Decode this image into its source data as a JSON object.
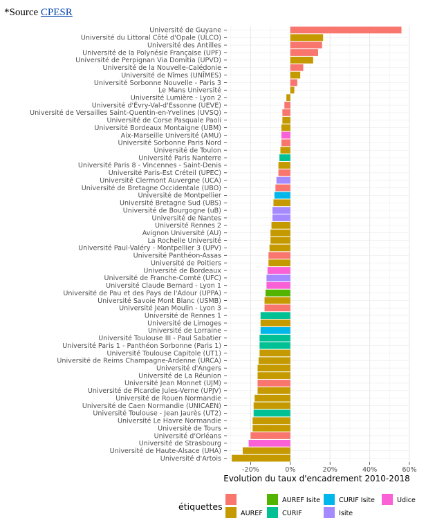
{
  "source": {
    "prefix": "*Source ",
    "link_text": "CPESR"
  },
  "colors": {
    "": "#F8766D",
    "AUREF": "#C49A00",
    "AUREF Isite": "#53B400",
    "CURIF": "#00C094",
    "CURIF Isite": "#00B6EB",
    "Isite": "#A58AFF",
    "Udice": "#FB61D7"
  },
  "chart_data": {
    "type": "bar",
    "orientation": "horizontal",
    "xlabel": "Evolution du taux d'encadrement 2010-2018",
    "ylabel": "",
    "xlim": [
      -0.32,
      0.6
    ],
    "xticks": [
      -0.2,
      0,
      0.2,
      0.4,
      0.6
    ],
    "xtick_labels": [
      "-20%",
      "0%",
      "20%",
      "40%",
      "60%"
    ],
    "grid": true,
    "legend_title": "étiquettes",
    "legend_position": "bottom",
    "legend_entries": [
      "",
      "AUREF",
      "AUREF Isite",
      "CURIF",
      "CURIF Isite",
      "Isite",
      "Udice"
    ],
    "series": [
      {
        "label": "Université de Guyane",
        "value": 0.56,
        "group": ""
      },
      {
        "label": "Université du Littoral Côté d'Opale (ULCO)",
        "value": 0.165,
        "group": "AUREF"
      },
      {
        "label": "Université des Antilles",
        "value": 0.16,
        "group": ""
      },
      {
        "label": "Université de la Polynésie Française (UPF)",
        "value": 0.14,
        "group": ""
      },
      {
        "label": "Université de Perpignan Via Domitia (UPVD)",
        "value": 0.115,
        "group": "AUREF"
      },
      {
        "label": "Université de la Nouvelle-Calédonie",
        "value": 0.065,
        "group": ""
      },
      {
        "label": "Université de Nîmes (UNÎMES)",
        "value": 0.05,
        "group": "AUREF"
      },
      {
        "label": "Université Sorbonne Nouvelle - Paris 3",
        "value": 0.035,
        "group": ""
      },
      {
        "label": "Le Mans Université",
        "value": 0.02,
        "group": "AUREF"
      },
      {
        "label": "Université Lumière - Lyon 2",
        "value": -0.02,
        "group": "AUREF"
      },
      {
        "label": "Université d'Évry-Val-d'Essonne (UEVE)",
        "value": -0.03,
        "group": ""
      },
      {
        "label": "Université de Versailles Saint-Quentin-en-Yvelines (UVSQ)",
        "value": -0.04,
        "group": ""
      },
      {
        "label": "Université de Corse Pasquale Paoli",
        "value": -0.04,
        "group": "AUREF"
      },
      {
        "label": "Université Bordeaux Montaigne (UBM)",
        "value": -0.045,
        "group": "AUREF"
      },
      {
        "label": "Aix-Marseille Université (AMU)",
        "value": -0.045,
        "group": "Udice"
      },
      {
        "label": "Université Sorbonne Paris Nord",
        "value": -0.045,
        "group": ""
      },
      {
        "label": "Université de Toulon",
        "value": -0.05,
        "group": "AUREF"
      },
      {
        "label": "Université Paris Nanterre",
        "value": -0.055,
        "group": "CURIF"
      },
      {
        "label": "Université Paris 8 - Vincennes - Saint-Denis",
        "value": -0.06,
        "group": "AUREF"
      },
      {
        "label": "Université Paris-Est Créteil (UPEC)",
        "value": -0.06,
        "group": ""
      },
      {
        "label": "Université Clermont Auvergne (UCA)",
        "value": -0.07,
        "group": "Isite"
      },
      {
        "label": "Université de Bretagne Occidentale (UBO)",
        "value": -0.075,
        "group": ""
      },
      {
        "label": "Université de Montpellier",
        "value": -0.08,
        "group": "CURIF Isite"
      },
      {
        "label": "Université Bretagne Sud (UBS)",
        "value": -0.085,
        "group": "AUREF"
      },
      {
        "label": "Université de Bourgogne (uB)",
        "value": -0.09,
        "group": "Isite"
      },
      {
        "label": "Université de Nantes",
        "value": -0.09,
        "group": "Isite"
      },
      {
        "label": "Université Rennes 2",
        "value": -0.095,
        "group": "AUREF"
      },
      {
        "label": "Avignon Université (AU)",
        "value": -0.1,
        "group": "AUREF"
      },
      {
        "label": "La Rochelle Université",
        "value": -0.1,
        "group": "AUREF"
      },
      {
        "label": "Université Paul-Valéry - Montpellier 3 (UPV)",
        "value": -0.105,
        "group": "AUREF"
      },
      {
        "label": "Université Panthéon-Assas",
        "value": -0.11,
        "group": ""
      },
      {
        "label": "Université de Poitiers",
        "value": -0.11,
        "group": "AUREF"
      },
      {
        "label": "Université de Bordeaux",
        "value": -0.115,
        "group": "Udice"
      },
      {
        "label": "Université de Franche-Comté (UFC)",
        "value": -0.12,
        "group": "Isite"
      },
      {
        "label": "Université Claude Bernard - Lyon 1",
        "value": -0.12,
        "group": "Udice"
      },
      {
        "label": "Université de Pau et des Pays de l'Adour (UPPA)",
        "value": -0.125,
        "group": "AUREF Isite"
      },
      {
        "label": "Université Savoie Mont Blanc (USMB)",
        "value": -0.13,
        "group": "AUREF"
      },
      {
        "label": "Université Jean Moulin - Lyon 3",
        "value": -0.13,
        "group": ""
      },
      {
        "label": "Université de Rennes 1",
        "value": -0.15,
        "group": "CURIF"
      },
      {
        "label": "Université de Limoges",
        "value": -0.15,
        "group": "AUREF"
      },
      {
        "label": "Université de Lorraine",
        "value": -0.15,
        "group": "CURIF Isite"
      },
      {
        "label": "Université Toulouse III - Paul Sabatier",
        "value": -0.155,
        "group": "CURIF"
      },
      {
        "label": "Université Paris 1 - Panthéon Sorbonne (Paris 1)",
        "value": -0.155,
        "group": "CURIF"
      },
      {
        "label": "Université Toulouse Capitole (UT1)",
        "value": -0.155,
        "group": "AUREF"
      },
      {
        "label": "Université de Reims Champagne-Ardenne (URCA)",
        "value": -0.16,
        "group": "AUREF"
      },
      {
        "label": "Université d'Angers",
        "value": -0.165,
        "group": "AUREF"
      },
      {
        "label": "Université de La Réunion",
        "value": -0.165,
        "group": "AUREF"
      },
      {
        "label": "Université Jean Monnet (UJM)",
        "value": -0.165,
        "group": ""
      },
      {
        "label": "Université de Picardie Jules-Verne (UPJV)",
        "value": -0.165,
        "group": "AUREF"
      },
      {
        "label": "Université de Rouen Normandie",
        "value": -0.18,
        "group": "AUREF"
      },
      {
        "label": "Université de Caen Normandie (UNICAEN)",
        "value": -0.185,
        "group": "AUREF"
      },
      {
        "label": "Université Toulouse - Jean Jaurès (UT2)",
        "value": -0.185,
        "group": "CURIF"
      },
      {
        "label": "Université Le Havre Normandie",
        "value": -0.19,
        "group": "AUREF"
      },
      {
        "label": "Université de Tours",
        "value": -0.19,
        "group": "AUREF"
      },
      {
        "label": "Université d'Orléans",
        "value": -0.2,
        "group": ""
      },
      {
        "label": "Université de Strasbourg",
        "value": -0.21,
        "group": "Udice"
      },
      {
        "label": "Université de Haute-Alsace (UHA)",
        "value": -0.24,
        "group": "AUREF"
      },
      {
        "label": "Université d'Artois",
        "value": -0.295,
        "group": "AUREF"
      }
    ]
  }
}
